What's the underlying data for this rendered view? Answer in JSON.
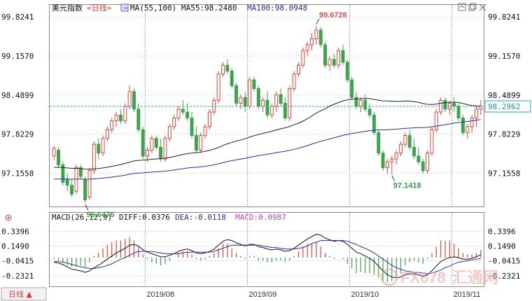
{
  "header": {
    "symbol_name": "美元指数",
    "period_label": "<日线>",
    "ma_label": "MA(55,100)",
    "ma55_label": "MA55:98.2480",
    "ma100_label": "MA100:98.0948",
    "macd_label": "MACD(26,12,9)",
    "diff_label": "DIFF:0.0376",
    "dea_label": "DEA:-0.0118",
    "macd_value_label": "MACD:0.0987",
    "period_button": "日线 ▲"
  },
  "watermark": {
    "text_a": "FX678",
    "text_b": "汇通网"
  },
  "window_icons": [
    "expand-icon",
    "restore-icon",
    "close-icon"
  ],
  "colors": {
    "up": "#e0463a",
    "down": "#3fa34d",
    "ma55": "#222222",
    "ma100": "#2b2ba8",
    "diff": "#111111",
    "dea": "#2d2da8",
    "hist_pos": "#e0463a",
    "hist_neg": "#3fa34d",
    "price_line": "#2aa6c9",
    "grid": "#555555"
  },
  "chart_data": [
    {
      "type": "candlestick",
      "title": "美元指数",
      "x_labels": [
        "2019/08",
        "2019/09",
        "2019/10",
        "2019/11"
      ],
      "y_ticks": [
        "99.8241",
        "99.1570",
        "98.4899",
        "97.8229",
        "97.1558"
      ],
      "ylim": [
        96.6,
        99.85
      ],
      "current_price": 98.2962,
      "current_price_label": "98.2962",
      "annotations": [
        {
          "text": "99.6728",
          "value": 99.6728,
          "candle": 59
        },
        {
          "text": "97.1418",
          "value": 97.1418,
          "candle": 76
        },
        {
          "text": "96.6476",
          "value": 96.6476,
          "candle": 7
        }
      ],
      "ohlc": [
        [
          97.45,
          97.62,
          97.38,
          97.58
        ],
        [
          97.55,
          97.6,
          97.25,
          97.3
        ],
        [
          97.3,
          97.35,
          96.95,
          97.0
        ],
        [
          97.05,
          97.15,
          96.85,
          96.95
        ],
        [
          96.95,
          97.05,
          96.75,
          96.8
        ],
        [
          96.85,
          97.3,
          96.8,
          97.25
        ],
        [
          97.25,
          97.3,
          97.05,
          97.1
        ],
        [
          97.05,
          97.1,
          96.65,
          96.7
        ],
        [
          96.75,
          97.25,
          96.7,
          97.2
        ],
        [
          97.2,
          97.7,
          97.15,
          97.65
        ],
        [
          97.65,
          97.75,
          97.4,
          97.5
        ],
        [
          97.5,
          97.8,
          97.45,
          97.75
        ],
        [
          97.75,
          97.95,
          97.7,
          97.9
        ],
        [
          97.9,
          98.1,
          97.85,
          98.05
        ],
        [
          98.05,
          98.2,
          97.95,
          98.15
        ],
        [
          98.15,
          98.25,
          98.0,
          98.05
        ],
        [
          98.05,
          98.35,
          98.0,
          98.3
        ],
        [
          98.3,
          98.65,
          98.25,
          98.55
        ],
        [
          98.55,
          98.6,
          98.2,
          98.25
        ],
        [
          98.25,
          98.35,
          97.85,
          97.9
        ],
        [
          97.9,
          97.95,
          97.4,
          97.45
        ],
        [
          97.45,
          97.6,
          97.35,
          97.55
        ],
        [
          97.55,
          97.8,
          97.5,
          97.75
        ],
        [
          97.75,
          97.8,
          97.55,
          97.6
        ],
        [
          97.6,
          97.75,
          97.35,
          97.4
        ],
        [
          97.4,
          97.8,
          97.35,
          97.75
        ],
        [
          97.75,
          98.0,
          97.7,
          97.95
        ],
        [
          97.95,
          98.15,
          97.9,
          98.1
        ],
        [
          98.1,
          98.3,
          98.05,
          98.25
        ],
        [
          98.25,
          98.4,
          98.15,
          98.2
        ],
        [
          98.2,
          98.35,
          98.05,
          98.1
        ],
        [
          98.1,
          98.2,
          97.75,
          97.8
        ],
        [
          97.8,
          97.95,
          97.5,
          97.55
        ],
        [
          97.55,
          97.85,
          97.5,
          97.8
        ],
        [
          97.8,
          98.0,
          97.75,
          97.95
        ],
        [
          97.95,
          98.25,
          97.9,
          98.2
        ],
        [
          98.2,
          98.45,
          98.15,
          98.4
        ],
        [
          98.4,
          98.9,
          98.35,
          98.85
        ],
        [
          98.85,
          99.05,
          98.8,
          99.0
        ],
        [
          99.0,
          99.1,
          98.85,
          98.9
        ],
        [
          98.9,
          98.95,
          98.6,
          98.65
        ],
        [
          98.65,
          98.7,
          98.3,
          98.35
        ],
        [
          98.35,
          98.5,
          98.25,
          98.45
        ],
        [
          98.45,
          98.55,
          98.2,
          98.3
        ],
        [
          98.3,
          98.8,
          98.25,
          98.75
        ],
        [
          98.75,
          98.8,
          98.55,
          98.6
        ],
        [
          98.6,
          98.65,
          98.25,
          98.3
        ],
        [
          98.3,
          98.45,
          98.2,
          98.4
        ],
        [
          98.4,
          98.55,
          98.1,
          98.15
        ],
        [
          98.15,
          98.35,
          98.1,
          98.3
        ],
        [
          98.3,
          98.55,
          98.2,
          98.5
        ],
        [
          98.5,
          98.6,
          98.3,
          98.35
        ],
        [
          98.35,
          98.45,
          98.05,
          98.1
        ],
        [
          98.1,
          98.65,
          98.05,
          98.6
        ],
        [
          98.6,
          98.9,
          98.55,
          98.85
        ],
        [
          98.85,
          99.05,
          98.8,
          99.0
        ],
        [
          99.0,
          99.3,
          98.95,
          99.25
        ],
        [
          99.25,
          99.4,
          99.15,
          99.35
        ],
        [
          99.35,
          99.55,
          99.25,
          99.45
        ],
        [
          99.45,
          99.67,
          99.35,
          99.6
        ],
        [
          99.6,
          99.65,
          99.3,
          99.35
        ],
        [
          99.35,
          99.4,
          98.95,
          99.0
        ],
        [
          99.0,
          99.15,
          98.9,
          99.1
        ],
        [
          99.1,
          99.2,
          98.95,
          99.0
        ],
        [
          99.0,
          99.3,
          98.95,
          99.25
        ],
        [
          99.25,
          99.35,
          99.0,
          99.05
        ],
        [
          99.05,
          99.1,
          98.7,
          98.75
        ],
        [
          98.75,
          98.8,
          98.4,
          98.45
        ],
        [
          98.45,
          98.55,
          98.25,
          98.3
        ],
        [
          98.3,
          98.45,
          98.2,
          98.4
        ],
        [
          98.4,
          98.5,
          98.2,
          98.25
        ],
        [
          98.25,
          98.35,
          98.1,
          98.15
        ],
        [
          98.15,
          98.2,
          97.8,
          97.85
        ],
        [
          97.85,
          97.9,
          97.45,
          97.5
        ],
        [
          97.5,
          97.55,
          97.2,
          97.25
        ],
        [
          97.25,
          97.4,
          97.15,
          97.35
        ],
        [
          97.35,
          97.45,
          97.14,
          97.4
        ],
        [
          97.4,
          97.55,
          97.3,
          97.5
        ],
        [
          97.5,
          97.7,
          97.45,
          97.65
        ],
        [
          97.65,
          97.85,
          97.6,
          97.8
        ],
        [
          97.8,
          97.9,
          97.55,
          97.6
        ],
        [
          97.6,
          97.75,
          97.4,
          97.45
        ],
        [
          97.45,
          97.6,
          97.3,
          97.35
        ],
        [
          97.35,
          97.4,
          97.15,
          97.2
        ],
        [
          97.2,
          97.55,
          97.15,
          97.5
        ],
        [
          97.5,
          97.95,
          97.45,
          97.9
        ],
        [
          97.9,
          98.25,
          97.85,
          98.2
        ],
        [
          98.2,
          98.45,
          98.15,
          98.4
        ],
        [
          98.4,
          98.45,
          98.2,
          98.25
        ],
        [
          98.25,
          98.4,
          98.15,
          98.35
        ],
        [
          98.35,
          98.45,
          98.2,
          98.3
        ],
        [
          98.3,
          98.35,
          98.05,
          98.1
        ],
        [
          98.1,
          98.15,
          97.8,
          97.85
        ],
        [
          97.85,
          98.0,
          97.75,
          97.95
        ],
        [
          97.95,
          98.15,
          97.85,
          98.1
        ],
        [
          98.1,
          98.3,
          97.95,
          98.25
        ],
        [
          98.25,
          98.4,
          98.15,
          98.3
        ]
      ]
    },
    {
      "type": "macd",
      "title": "MACD(26,12,9)",
      "y_ticks": [
        "0.3396",
        "0.1490",
        "-0.0415",
        "-0.2321"
      ],
      "ylim": [
        -0.36,
        0.45
      ],
      "diff": [
        -0.06,
        -0.07,
        -0.09,
        -0.12,
        -0.15,
        -0.16,
        -0.17,
        -0.19,
        -0.17,
        -0.13,
        -0.1,
        -0.06,
        -0.02,
        0.02,
        0.06,
        0.09,
        0.12,
        0.16,
        0.17,
        0.15,
        0.1,
        0.07,
        0.05,
        0.03,
        0.01,
        0.01,
        0.03,
        0.05,
        0.08,
        0.1,
        0.11,
        0.09,
        0.06,
        0.05,
        0.06,
        0.08,
        0.11,
        0.16,
        0.21,
        0.23,
        0.22,
        0.19,
        0.17,
        0.15,
        0.17,
        0.17,
        0.14,
        0.13,
        0.11,
        0.1,
        0.11,
        0.1,
        0.08,
        0.09,
        0.12,
        0.16,
        0.2,
        0.24,
        0.27,
        0.3,
        0.29,
        0.25,
        0.23,
        0.21,
        0.22,
        0.21,
        0.17,
        0.12,
        0.07,
        0.05,
        0.02,
        -0.01,
        -0.05,
        -0.11,
        -0.17,
        -0.22,
        -0.25,
        -0.26,
        -0.25,
        -0.22,
        -0.21,
        -0.21,
        -0.22,
        -0.24,
        -0.22,
        -0.17,
        -0.11,
        -0.05,
        -0.02,
        0.0,
        0.01,
        0.0,
        -0.02,
        -0.02,
        -0.01,
        0.01,
        0.0376
      ],
      "dea": [
        -0.05,
        -0.05,
        -0.06,
        -0.07,
        -0.09,
        -0.1,
        -0.12,
        -0.13,
        -0.14,
        -0.14,
        -0.13,
        -0.12,
        -0.1,
        -0.08,
        -0.05,
        -0.02,
        0.0,
        0.03,
        0.06,
        0.08,
        0.08,
        0.08,
        0.08,
        0.07,
        0.06,
        0.05,
        0.05,
        0.05,
        0.05,
        0.06,
        0.07,
        0.07,
        0.07,
        0.07,
        0.07,
        0.07,
        0.08,
        0.1,
        0.12,
        0.14,
        0.16,
        0.16,
        0.16,
        0.16,
        0.16,
        0.16,
        0.16,
        0.15,
        0.14,
        0.13,
        0.13,
        0.12,
        0.11,
        0.11,
        0.11,
        0.12,
        0.13,
        0.15,
        0.18,
        0.2,
        0.22,
        0.22,
        0.22,
        0.22,
        0.22,
        0.22,
        0.21,
        0.19,
        0.17,
        0.14,
        0.12,
        0.09,
        0.06,
        0.02,
        -0.02,
        -0.06,
        -0.1,
        -0.13,
        -0.15,
        -0.17,
        -0.18,
        -0.19,
        -0.19,
        -0.2,
        -0.21,
        -0.2,
        -0.18,
        -0.16,
        -0.13,
        -0.11,
        -0.08,
        -0.06,
        -0.05,
        -0.04,
        -0.03,
        -0.02,
        -0.0118
      ]
    }
  ]
}
